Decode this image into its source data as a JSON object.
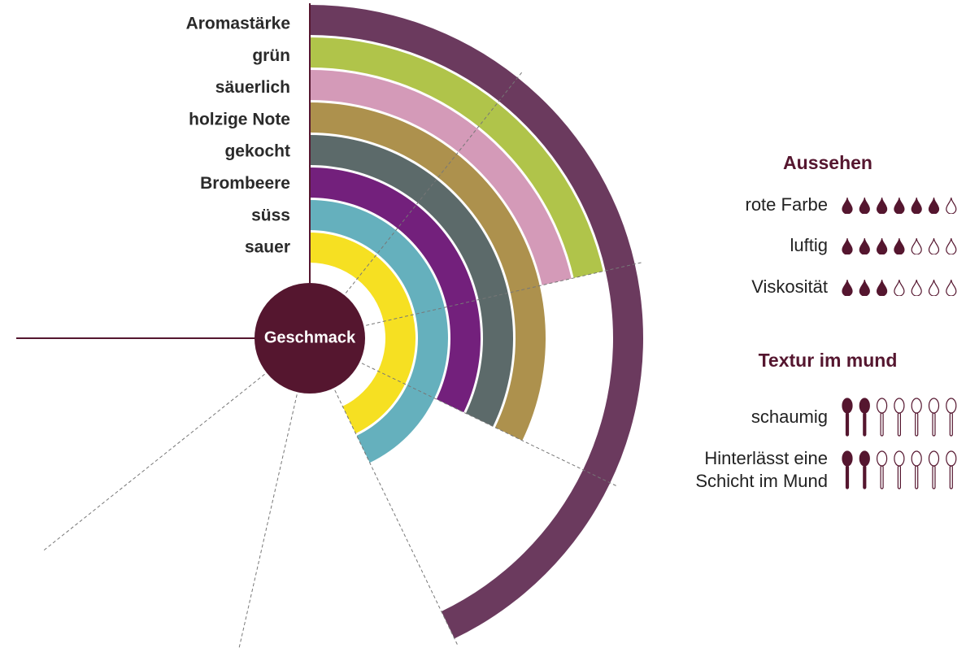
{
  "chart_data": {
    "type": "radial-bar",
    "center_label": "Geschmack",
    "center_color": "#55162f",
    "categories": [
      "Aromastärke",
      "grün",
      "säuerlich",
      "holzige Note",
      "gekocht",
      "Brombeere",
      "süss",
      "sauer"
    ],
    "values": [
      4,
      2,
      2,
      3,
      3,
      3,
      4,
      4
    ],
    "colors": [
      "#6b3a5e",
      "#b0c44a",
      "#d49ab8",
      "#ad914d",
      "#5c6a6a",
      "#73207c",
      "#65b0bd",
      "#f6e022"
    ],
    "xlim": [
      0,
      7
    ],
    "xticks": [
      0,
      1,
      2,
      3,
      4,
      5,
      6,
      7
    ]
  },
  "ratings": [
    {
      "title": "Aussehen",
      "icon": "drop",
      "max": 7,
      "items": [
        {
          "label": "rote Farbe",
          "value": 6
        },
        {
          "label": "luftig",
          "value": 4
        },
        {
          "label": "Viskosität",
          "value": 3
        }
      ]
    },
    {
      "title": "Textur im mund",
      "icon": "spoon",
      "max": 7,
      "items": [
        {
          "label": "schaumig",
          "value": 2
        },
        {
          "label": "Hinterlässt eine Schicht im Mund",
          "value": 2
        }
      ]
    }
  ]
}
